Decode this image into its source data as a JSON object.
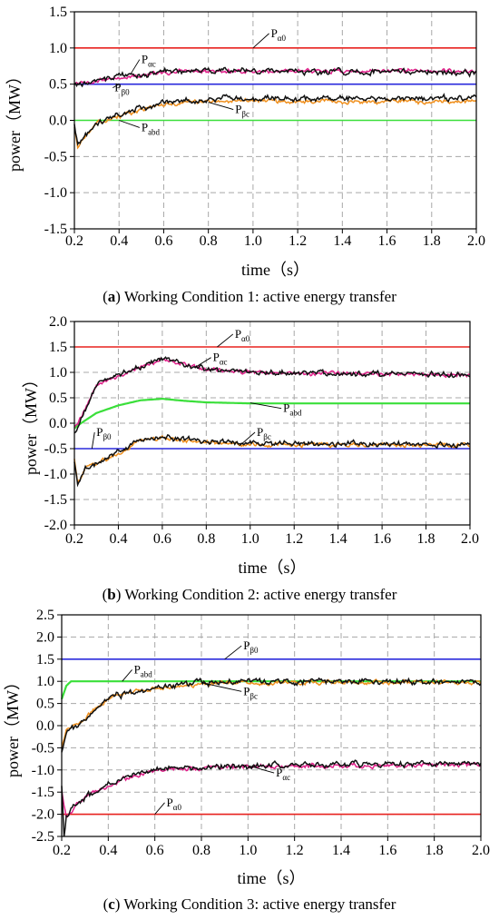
{
  "chart_data": [
    {
      "type": "line",
      "caption_letter": "a",
      "caption_text": " Working Condition 1: active energy transfer",
      "xlabel": "time（s）",
      "ylabel": "power（MW）",
      "xlim": [
        0.2,
        2.0
      ],
      "ylim": [
        -1.5,
        1.5
      ],
      "xticks": [
        "0.2",
        "0.4",
        "0.6",
        "0.8",
        "1.0",
        "1.2",
        "1.4",
        "1.6",
        "1.8",
        "2.0"
      ],
      "yticks": [
        "1.5",
        "1.0",
        "0.5",
        "0.0",
        "-0.5",
        "-1.0",
        "-1.5"
      ],
      "grid": true,
      "series": [
        {
          "name": "Pα0",
          "color": "#e8221f",
          "kind": "const",
          "values": [
            [
              0.2,
              1.0
            ],
            [
              2.0,
              1.0
            ]
          ]
        },
        {
          "name": "Pβ0",
          "color": "#2a2adc",
          "kind": "const",
          "values": [
            [
              0.2,
              0.5
            ],
            [
              2.0,
              0.5
            ]
          ]
        },
        {
          "name": "Pabd",
          "color": "#3adf3a",
          "kind": "const",
          "values": [
            [
              0.2,
              0.0
            ],
            [
              2.0,
              0.0
            ]
          ]
        },
        {
          "name": "Pαc",
          "color": "#e0208a",
          "kind": "noisy",
          "values": [
            [
              0.2,
              0.5
            ],
            [
              0.25,
              0.5
            ],
            [
              0.3,
              0.55
            ],
            [
              0.4,
              0.6
            ],
            [
              0.5,
              0.62
            ],
            [
              0.6,
              0.66
            ],
            [
              0.8,
              0.68
            ],
            [
              1.0,
              0.68
            ],
            [
              1.5,
              0.68
            ],
            [
              2.0,
              0.68
            ]
          ]
        },
        {
          "name": "",
          "color": "#111111",
          "kind": "noisy",
          "values": [
            [
              0.2,
              0.48
            ],
            [
              0.25,
              0.5
            ],
            [
              0.3,
              0.55
            ],
            [
              0.4,
              0.62
            ],
            [
              0.5,
              0.62
            ],
            [
              0.6,
              0.67
            ],
            [
              0.8,
              0.69
            ],
            [
              1.0,
              0.68
            ],
            [
              1.5,
              0.67
            ],
            [
              2.0,
              0.66
            ]
          ]
        },
        {
          "name": "Pβc",
          "color": "#f0901e",
          "kind": "noisy",
          "values": [
            [
              0.2,
              -0.1
            ],
            [
              0.215,
              -0.35
            ],
            [
              0.25,
              -0.2
            ],
            [
              0.3,
              -0.05
            ],
            [
              0.4,
              0.05
            ],
            [
              0.5,
              0.15
            ],
            [
              0.6,
              0.22
            ],
            [
              0.8,
              0.26
            ],
            [
              1.0,
              0.27
            ],
            [
              1.5,
              0.26
            ],
            [
              2.0,
              0.26
            ]
          ]
        },
        {
          "name": "",
          "color": "#111111",
          "kind": "noisy",
          "values": [
            [
              0.2,
              -0.05
            ],
            [
              0.215,
              -0.33
            ],
            [
              0.25,
              -0.2
            ],
            [
              0.3,
              -0.05
            ],
            [
              0.4,
              0.08
            ],
            [
              0.5,
              0.18
            ],
            [
              0.6,
              0.25
            ],
            [
              0.8,
              0.3
            ],
            [
              1.0,
              0.3
            ],
            [
              1.5,
              0.3
            ],
            [
              2.0,
              0.3
            ]
          ]
        }
      ],
      "labels": [
        {
          "main": "P",
          "sub": "α0",
          "x": 1.0,
          "y": 1.0,
          "dx": 0.08,
          "dy": 0.15
        },
        {
          "main": "P",
          "sub": "αc",
          "x": 0.45,
          "y": 0.63,
          "dx": 0.05,
          "dy": 0.16
        },
        {
          "main": "P",
          "sub": "β0",
          "x": 0.4,
          "y": 0.5,
          "dx": -0.02,
          "dy": -0.1
        },
        {
          "main": "P",
          "sub": "βc",
          "x": 0.8,
          "y": 0.25,
          "dx": 0.12,
          "dy": -0.15
        },
        {
          "main": "P",
          "sub": "abd",
          "x": 0.4,
          "y": 0.0,
          "dx": 0.1,
          "dy": -0.15
        }
      ]
    },
    {
      "type": "line",
      "caption_letter": "b",
      "caption_text": " Working Condition 2: active energy transfer",
      "xlabel": "time（s）",
      "ylabel": "power（MW）",
      "xlim": [
        0.2,
        2.0
      ],
      "ylim": [
        -2.0,
        2.0
      ],
      "xticks": [
        "0.2",
        "0.4",
        "0.6",
        "0.8",
        "1.0",
        "1.2",
        "1.4",
        "1.6",
        "1.8",
        "2.0"
      ],
      "yticks": [
        "2.0",
        "1.5",
        "1.0",
        "0.5",
        "0.0",
        "-0.5",
        "-1.0",
        "-1.5",
        "-2.0"
      ],
      "grid": true,
      "series": [
        {
          "name": "Pα0",
          "color": "#e8221f",
          "kind": "const",
          "values": [
            [
              0.2,
              1.5
            ],
            [
              2.0,
              1.5
            ]
          ]
        },
        {
          "name": "Pβ0",
          "color": "#2a2adc",
          "kind": "const",
          "values": [
            [
              0.2,
              -0.5
            ],
            [
              2.0,
              -0.5
            ]
          ]
        },
        {
          "name": "Pabd",
          "color": "#3adf3a",
          "kind": "smooth",
          "values": [
            [
              0.2,
              -0.1
            ],
            [
              0.23,
              0.0
            ],
            [
              0.3,
              0.2
            ],
            [
              0.4,
              0.35
            ],
            [
              0.5,
              0.45
            ],
            [
              0.6,
              0.48
            ],
            [
              0.7,
              0.44
            ],
            [
              0.8,
              0.41
            ],
            [
              1.0,
              0.39
            ],
            [
              2.0,
              0.39
            ]
          ]
        },
        {
          "name": "Pαc",
          "color": "#e0208a",
          "kind": "noisy",
          "values": [
            [
              0.2,
              -0.1
            ],
            [
              0.23,
              0.1
            ],
            [
              0.3,
              0.75
            ],
            [
              0.4,
              0.95
            ],
            [
              0.5,
              1.1
            ],
            [
              0.6,
              1.25
            ],
            [
              0.7,
              1.15
            ],
            [
              0.8,
              1.05
            ],
            [
              1.0,
              1.0
            ],
            [
              1.5,
              0.97
            ],
            [
              2.0,
              0.95
            ]
          ]
        },
        {
          "name": "",
          "color": "#111111",
          "kind": "noisy",
          "values": [
            [
              0.2,
              -0.2
            ],
            [
              0.23,
              0.05
            ],
            [
              0.3,
              0.75
            ],
            [
              0.4,
              0.95
            ],
            [
              0.5,
              1.1
            ],
            [
              0.6,
              1.27
            ],
            [
              0.7,
              1.15
            ],
            [
              0.8,
              1.05
            ],
            [
              1.0,
              1.0
            ],
            [
              1.5,
              0.97
            ],
            [
              2.0,
              0.95
            ]
          ]
        },
        {
          "name": "Pβc",
          "color": "#f0901e",
          "kind": "noisy",
          "values": [
            [
              0.2,
              -0.7
            ],
            [
              0.215,
              -1.2
            ],
            [
              0.25,
              -0.85
            ],
            [
              0.3,
              -0.8
            ],
            [
              0.4,
              -0.6
            ],
            [
              0.5,
              -0.35
            ],
            [
              0.6,
              -0.3
            ],
            [
              0.8,
              -0.38
            ],
            [
              1.0,
              -0.42
            ],
            [
              1.5,
              -0.43
            ],
            [
              2.0,
              -0.43
            ]
          ]
        },
        {
          "name": "",
          "color": "#111111",
          "kind": "noisy",
          "values": [
            [
              0.2,
              -0.8
            ],
            [
              0.215,
              -1.2
            ],
            [
              0.25,
              -0.85
            ],
            [
              0.3,
              -0.8
            ],
            [
              0.4,
              -0.58
            ],
            [
              0.5,
              -0.33
            ],
            [
              0.6,
              -0.28
            ],
            [
              0.8,
              -0.36
            ],
            [
              1.0,
              -0.4
            ],
            [
              1.5,
              -0.41
            ],
            [
              2.0,
              -0.42
            ]
          ]
        }
      ],
      "labels": [
        {
          "main": "P",
          "sub": "α0",
          "x": 0.85,
          "y": 1.5,
          "dx": 0.08,
          "dy": 0.18
        },
        {
          "main": "P",
          "sub": "αc",
          "x": 0.75,
          "y": 1.1,
          "dx": 0.08,
          "dy": 0.12
        },
        {
          "main": "P",
          "sub": "abd",
          "x": 1.0,
          "y": 0.4,
          "dx": 0.15,
          "dy": -0.18
        },
        {
          "main": "P",
          "sub": "βc",
          "x": 0.95,
          "y": -0.45,
          "dx": 0.08,
          "dy": 0.2
        },
        {
          "main": "P",
          "sub": "β0",
          "x": 0.28,
          "y": -0.5,
          "dx": 0.02,
          "dy": 0.25
        }
      ]
    },
    {
      "type": "line",
      "caption_letter": "c",
      "caption_text": " Working Condition 3: active energy transfer",
      "xlabel": "time（s）",
      "ylabel": "power（MW）",
      "xlim": [
        0.2,
        2.0
      ],
      "ylim": [
        -2.5,
        2.5
      ],
      "xticks": [
        "0.2",
        "0.4",
        "0.6",
        "0.8",
        "1.0",
        "1.2",
        "1.4",
        "1.6",
        "1.8",
        "2.0"
      ],
      "yticks": [
        "2.5",
        "2.0",
        "1.5",
        "1.0",
        "0.5",
        "0.0",
        "-0.5",
        "-1.0",
        "-1.5",
        "-2.0",
        "-2.5"
      ],
      "grid": true,
      "series": [
        {
          "name": "Pβ0",
          "color": "#2a2adc",
          "kind": "const",
          "values": [
            [
              0.2,
              1.5
            ],
            [
              2.0,
              1.5
            ]
          ]
        },
        {
          "name": "Pα0",
          "color": "#e8221f",
          "kind": "const",
          "values": [
            [
              0.2,
              -2.0
            ],
            [
              2.0,
              -2.0
            ]
          ]
        },
        {
          "name": "Pabd",
          "color": "#3adf3a",
          "kind": "smooth",
          "values": [
            [
              0.2,
              0.6
            ],
            [
              0.21,
              0.75
            ],
            [
              0.22,
              0.9
            ],
            [
              0.24,
              1.0
            ],
            [
              2.0,
              1.0
            ]
          ]
        },
        {
          "name": "Pβc",
          "color": "#f0901e",
          "kind": "noisy",
          "values": [
            [
              0.2,
              -0.5
            ],
            [
              0.22,
              -0.1
            ],
            [
              0.3,
              0.15
            ],
            [
              0.35,
              0.4
            ],
            [
              0.4,
              0.6
            ],
            [
              0.5,
              0.75
            ],
            [
              0.6,
              0.85
            ],
            [
              0.8,
              0.95
            ],
            [
              1.0,
              0.97
            ],
            [
              1.5,
              0.98
            ],
            [
              2.0,
              0.98
            ]
          ]
        },
        {
          "name": "",
          "color": "#111111",
          "kind": "noisy",
          "values": [
            [
              0.2,
              -0.6
            ],
            [
              0.22,
              -0.15
            ],
            [
              0.3,
              0.15
            ],
            [
              0.35,
              0.4
            ],
            [
              0.4,
              0.62
            ],
            [
              0.5,
              0.76
            ],
            [
              0.6,
              0.85
            ],
            [
              0.8,
              0.97
            ],
            [
              1.0,
              1.0
            ],
            [
              1.5,
              1.0
            ],
            [
              2.0,
              1.0
            ]
          ]
        },
        {
          "name": "Pαc",
          "color": "#e0208a",
          "kind": "noisy",
          "values": [
            [
              0.2,
              -1.5
            ],
            [
              0.22,
              -2.1
            ],
            [
              0.26,
              -1.8
            ],
            [
              0.3,
              -1.6
            ],
            [
              0.4,
              -1.35
            ],
            [
              0.5,
              -1.15
            ],
            [
              0.6,
              -1.02
            ],
            [
              0.8,
              -0.96
            ],
            [
              1.0,
              -0.92
            ],
            [
              1.5,
              -0.9
            ],
            [
              2.0,
              -0.88
            ]
          ]
        },
        {
          "name": "",
          "color": "#111111",
          "kind": "noisy",
          "values": [
            [
              0.2,
              -1.4
            ],
            [
              0.21,
              -2.5
            ],
            [
              0.22,
              -2.0
            ],
            [
              0.26,
              -1.8
            ],
            [
              0.3,
              -1.6
            ],
            [
              0.4,
              -1.35
            ],
            [
              0.5,
              -1.15
            ],
            [
              0.6,
              -1.0
            ],
            [
              0.8,
              -0.94
            ],
            [
              1.0,
              -0.9
            ],
            [
              1.5,
              -0.88
            ],
            [
              2.0,
              -0.86
            ]
          ]
        }
      ],
      "labels": [
        {
          "main": "P",
          "sub": "β0",
          "x": 0.9,
          "y": 1.5,
          "dx": 0.08,
          "dy": 0.22
        },
        {
          "main": "P",
          "sub": "abd",
          "x": 0.46,
          "y": 1.0,
          "dx": 0.05,
          "dy": 0.18
        },
        {
          "main": "P",
          "sub": "βc",
          "x": 0.8,
          "y": 0.97,
          "dx": 0.18,
          "dy": -0.28
        },
        {
          "main": "P",
          "sub": "αc",
          "x": 1.0,
          "y": -0.9,
          "dx": 0.12,
          "dy": -0.25
        },
        {
          "main": "P",
          "sub": "α0",
          "x": 0.6,
          "y": -2.0,
          "dx": 0.05,
          "dy": 0.18
        }
      ]
    }
  ]
}
